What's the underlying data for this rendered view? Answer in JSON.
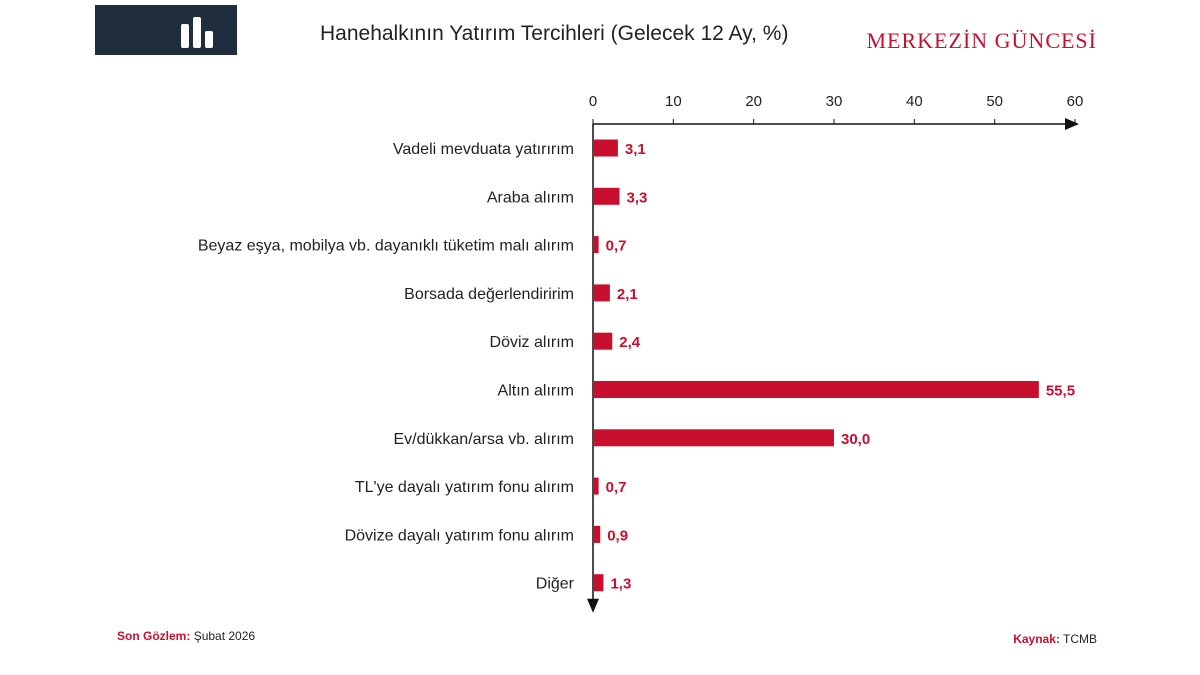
{
  "header": {
    "title": "Hanehalkının Yatırım Tercihleri (Gelecek 12 Ay, %)",
    "brand": "MERKEZİN GÜNCESİ",
    "logo_icon": "bar-chart-icon"
  },
  "footer": {
    "observation_label": "Son Gözlem:",
    "observation_value": "Şubat 2026",
    "source_label": "Kaynak:",
    "source_value": "TCMB"
  },
  "colors": {
    "bar": "#c8102e",
    "value_label": "#c8102e",
    "logo_bg": "#1f2d3d"
  },
  "chart_data": {
    "type": "bar",
    "orientation": "horizontal",
    "title": "Hanehalkının Yatırım Tercihleri (Gelecek 12 Ay, %)",
    "xlim": [
      0,
      60
    ],
    "xticks": [
      0,
      10,
      20,
      30,
      40,
      50,
      60
    ],
    "x_axis_position": "top",
    "grid": false,
    "categories": [
      "Vadeli mevduata yatırırım",
      "Araba alırım",
      "Beyaz eşya, mobilya vb. dayanıklı tüketim malı alırım",
      "Borsada değerlendiririm",
      "Döviz alırım",
      "Altın alırım",
      "Ev/dükkan/arsa vb. alırım",
      "TL'ye dayalı yatırım fonu alırım",
      "Dövize dayalı yatırım fonu alırım",
      "Diğer"
    ],
    "values": [
      3.1,
      3.3,
      0.7,
      2.1,
      2.4,
      55.5,
      30.0,
      0.7,
      0.9,
      1.3
    ],
    "value_labels": [
      "3,1",
      "3,3",
      "0,7",
      "2,1",
      "2,4",
      "55,5",
      "30,0",
      "0,7",
      "0,9",
      "1,3"
    ]
  }
}
